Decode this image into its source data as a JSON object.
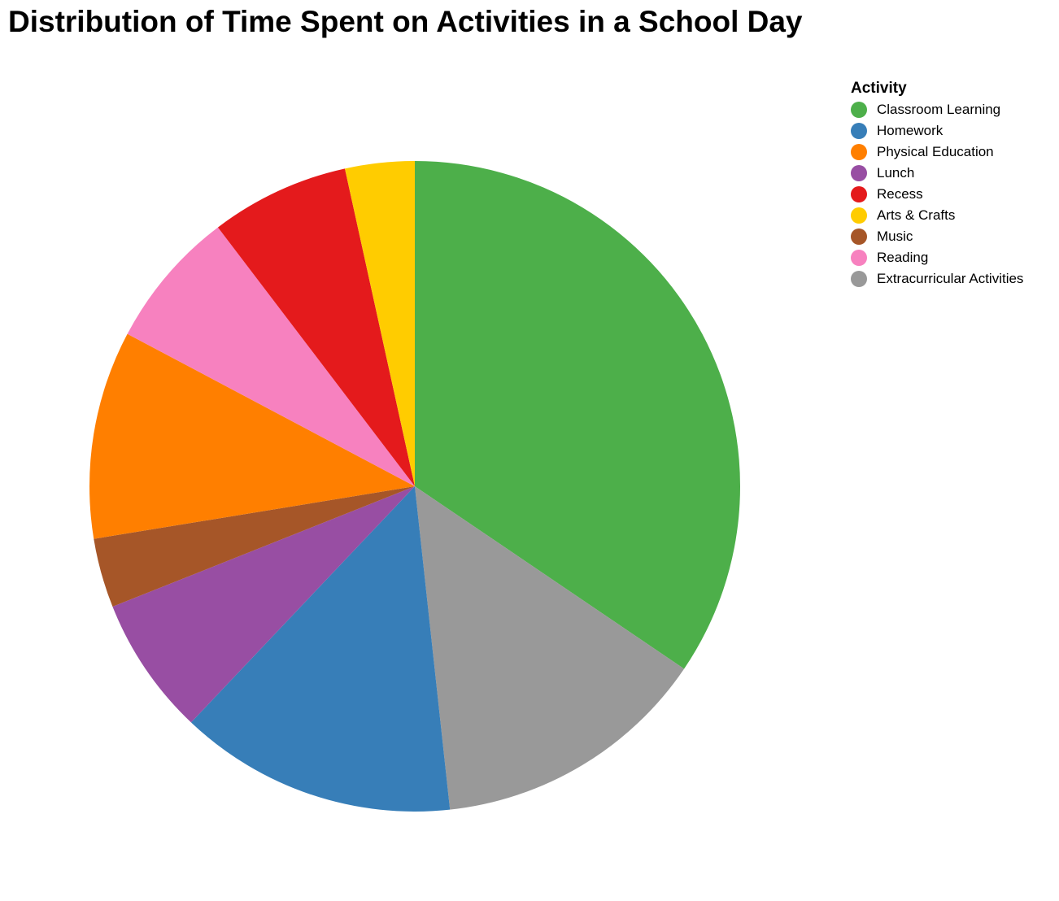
{
  "chart_data": {
    "type": "pie",
    "title": "Distribution of Time Spent on Activities in a School Day",
    "legend_title": "Activity",
    "legend_position": "top-right",
    "slices": [
      {
        "label": "Classroom Learning",
        "value": 300,
        "color": "#4daf4a"
      },
      {
        "label": "Extracurricular Activities",
        "value": 120,
        "color": "#999999"
      },
      {
        "label": "Homework",
        "value": 120,
        "color": "#377eb8"
      },
      {
        "label": "Lunch",
        "value": 60,
        "color": "#984ea3"
      },
      {
        "label": "Music",
        "value": 30,
        "color": "#a65628"
      },
      {
        "label": "Physical Education",
        "value": 90,
        "color": "#ff7f00"
      },
      {
        "label": "Reading",
        "value": 60,
        "color": "#f781bf"
      },
      {
        "label": "Recess",
        "value": 60,
        "color": "#e41a1c"
      },
      {
        "label": "Arts & Crafts",
        "value": 30,
        "color": "#ffcc00"
      }
    ],
    "legend": [
      {
        "label": "Classroom Learning",
        "color": "#4daf4a"
      },
      {
        "label": "Homework",
        "color": "#377eb8"
      },
      {
        "label": "Physical Education",
        "color": "#ff7f00"
      },
      {
        "label": "Lunch",
        "color": "#984ea3"
      },
      {
        "label": "Recess",
        "color": "#e41a1c"
      },
      {
        "label": "Arts & Crafts",
        "color": "#ffcc00"
      },
      {
        "label": "Music",
        "color": "#a65628"
      },
      {
        "label": "Reading",
        "color": "#f781bf"
      },
      {
        "label": "Extracurricular Activities",
        "color": "#999999"
      }
    ]
  }
}
